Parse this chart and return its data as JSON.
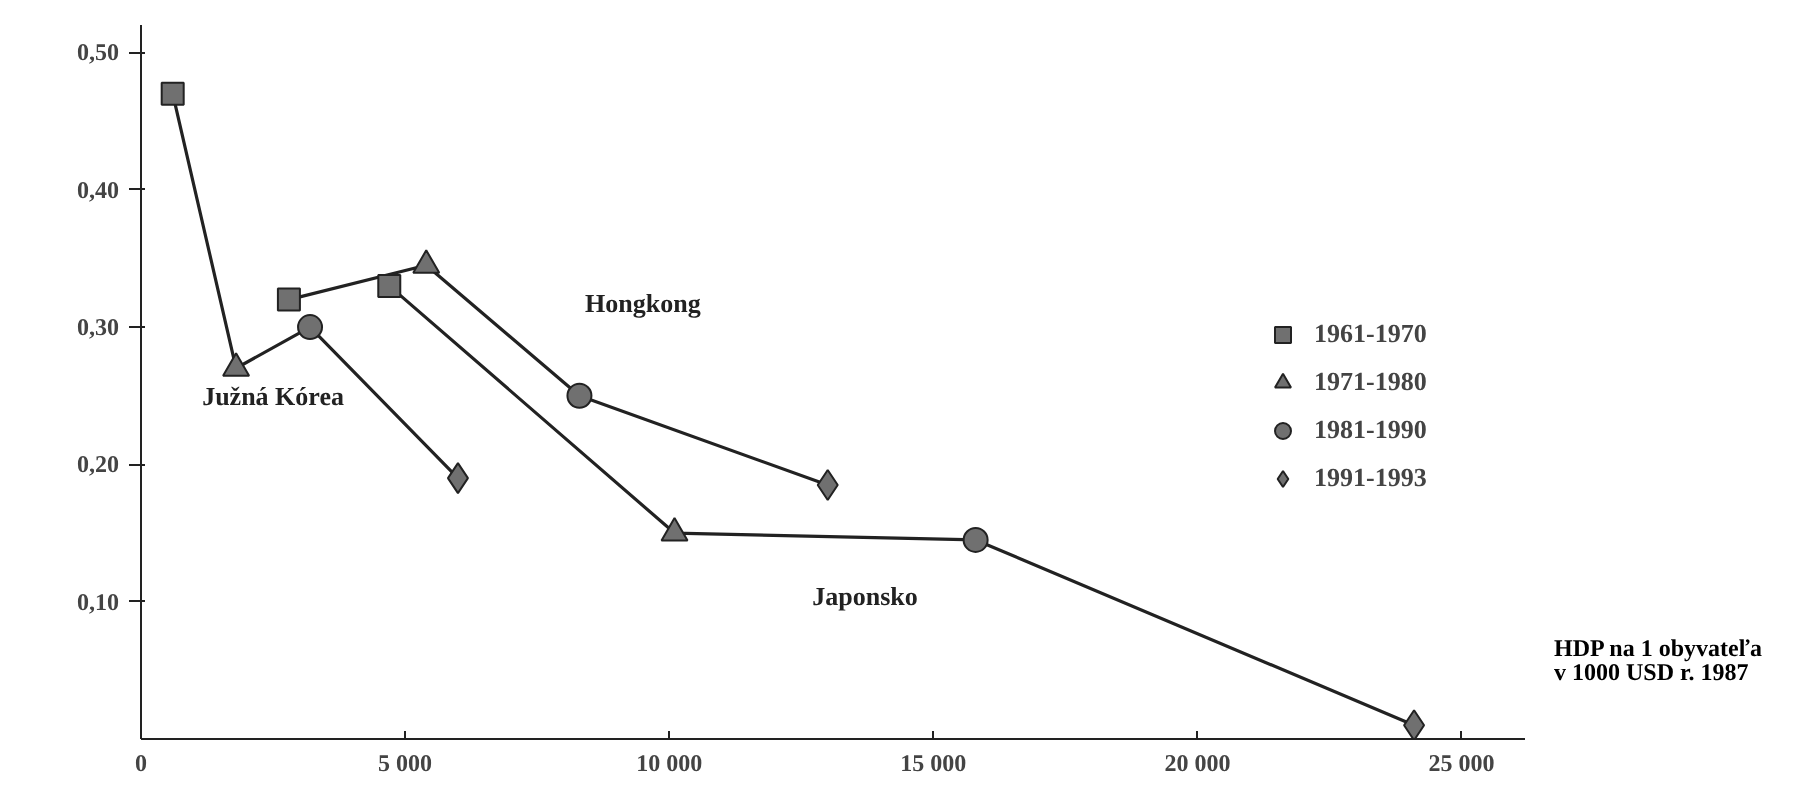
{
  "chart_data": {
    "type": "line",
    "xlabel": "HDP na 1 obyvateľa\nv 1000 USD r. 1987",
    "xlim": [
      0,
      26200
    ],
    "ylim": [
      0,
      0.52
    ],
    "xticks": [
      {
        "value": 0,
        "label": "0"
      },
      {
        "value": 5000,
        "label": "5 000"
      },
      {
        "value": 10000,
        "label": "10 000"
      },
      {
        "value": 15000,
        "label": "15 000"
      },
      {
        "value": 20000,
        "label": "20 000"
      },
      {
        "value": 25000,
        "label": "25 000"
      }
    ],
    "yticks": [
      {
        "value": 0.1,
        "label": "0,10"
      },
      {
        "value": 0.2,
        "label": "0,20"
      },
      {
        "value": 0.3,
        "label": "0,30"
      },
      {
        "value": 0.4,
        "label": "0,40"
      },
      {
        "value": 0.5,
        "label": "0,50"
      }
    ],
    "grid": false,
    "legend": "right",
    "line_style": "solid",
    "series": [
      {
        "name": "Južná Kórea",
        "color": "#222222",
        "marker": "none",
        "x": [
          600,
          1800,
          3200,
          6000
        ],
        "values": [
          0.47,
          0.27,
          0.3,
          0.19
        ]
      },
      {
        "name": "Hongkong",
        "color": "#222222",
        "marker": "none",
        "x": [
          2800,
          5400,
          8300,
          13000
        ],
        "values": [
          0.32,
          0.345,
          0.25,
          0.185
        ]
      },
      {
        "name": "Japonsko",
        "color": "#222222",
        "marker": "none",
        "x": [
          4700,
          10100,
          15800,
          24100
        ],
        "values": [
          0.33,
          0.15,
          0.145,
          0.01
        ]
      },
      {
        "type": "scatter",
        "name": "1961-1970",
        "color": "#707070",
        "marker": "square",
        "x": [
          600,
          2800,
          4700
        ],
        "values": [
          0.47,
          0.32,
          0.33
        ]
      },
      {
        "type": "scatter",
        "name": "1971-1980",
        "color": "#707070",
        "marker": "triangle",
        "x": [
          1800,
          5400,
          10100
        ],
        "values": [
          0.27,
          0.345,
          0.15
        ]
      },
      {
        "type": "scatter",
        "name": "1981-1990",
        "color": "#707070",
        "marker": "circle",
        "x": [
          3200,
          8300,
          15800
        ],
        "values": [
          0.3,
          0.25,
          0.145
        ]
      },
      {
        "type": "scatter",
        "name": "1991-1993",
        "color": "#707070",
        "marker": "diamond",
        "x": [
          6000,
          13000,
          24100
        ],
        "values": [
          0.19,
          0.185,
          0.01
        ]
      }
    ]
  }
}
